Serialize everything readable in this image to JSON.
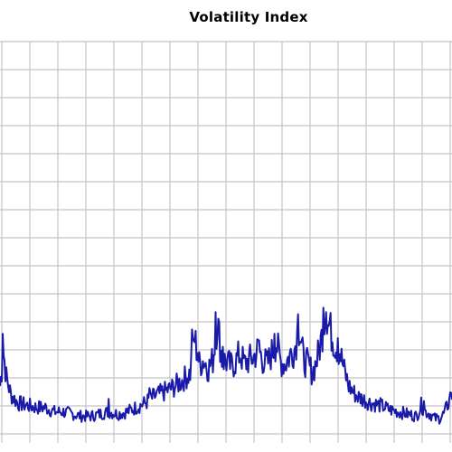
{
  "chart_data": {
    "type": "line",
    "title": "Volatility Index",
    "xlabel": "",
    "ylabel": "",
    "grid": true,
    "legend": "none",
    "line_color": "#1a1aa8",
    "grid_color": "#c4c4c4",
    "background": "#ffffff",
    "n_points": 500,
    "series": [
      {
        "name": "",
        "points": [
          [
            0,
            0.18
          ],
          [
            2,
            0.25
          ],
          [
            4,
            0.33
          ],
          [
            7,
            0.22
          ],
          [
            12,
            0.14
          ],
          [
            20,
            0.1
          ],
          [
            30,
            0.09
          ],
          [
            40,
            0.08
          ],
          [
            50,
            0.08
          ],
          [
            60,
            0.06
          ],
          [
            70,
            0.06
          ],
          [
            80,
            0.05
          ],
          [
            90,
            0.04
          ],
          [
            100,
            0.04
          ],
          [
            110,
            0.05
          ],
          [
            120,
            0.06
          ],
          [
            130,
            0.05
          ],
          [
            140,
            0.06
          ],
          [
            150,
            0.08
          ],
          [
            160,
            0.1
          ],
          [
            170,
            0.13
          ],
          [
            180,
            0.15
          ],
          [
            190,
            0.17
          ],
          [
            200,
            0.2
          ],
          [
            210,
            0.24
          ],
          [
            215,
            0.4
          ],
          [
            220,
            0.28
          ],
          [
            225,
            0.3
          ],
          [
            230,
            0.26
          ],
          [
            235,
            0.3
          ],
          [
            240,
            0.48
          ],
          [
            245,
            0.3
          ],
          [
            250,
            0.29
          ],
          [
            255,
            0.27
          ],
          [
            260,
            0.29
          ],
          [
            265,
            0.33
          ],
          [
            270,
            0.28
          ],
          [
            275,
            0.3
          ],
          [
            280,
            0.31
          ],
          [
            285,
            0.35
          ],
          [
            290,
            0.3
          ],
          [
            295,
            0.28
          ],
          [
            300,
            0.33
          ],
          [
            305,
            0.38
          ],
          [
            310,
            0.29
          ],
          [
            315,
            0.28
          ],
          [
            320,
            0.32
          ],
          [
            325,
            0.35
          ],
          [
            330,
            0.45
          ],
          [
            335,
            0.3
          ],
          [
            340,
            0.28
          ],
          [
            345,
            0.24
          ],
          [
            350,
            0.3
          ],
          [
            355,
            0.4
          ],
          [
            358,
            0.5
          ],
          [
            362,
            0.46
          ],
          [
            366,
            0.42
          ],
          [
            370,
            0.37
          ],
          [
            375,
            0.34
          ],
          [
            380,
            0.25
          ],
          [
            385,
            0.18
          ],
          [
            390,
            0.15
          ],
          [
            395,
            0.13
          ],
          [
            400,
            0.12
          ],
          [
            410,
            0.1
          ],
          [
            420,
            0.09
          ],
          [
            430,
            0.07
          ],
          [
            440,
            0.06
          ],
          [
            450,
            0.05
          ],
          [
            460,
            0.04
          ],
          [
            465,
            0.09
          ],
          [
            470,
            0.06
          ],
          [
            475,
            0.05
          ],
          [
            480,
            0.03
          ],
          [
            485,
            0.03
          ],
          [
            490,
            0.05
          ],
          [
            495,
            0.1
          ],
          [
            499,
            0.13
          ]
        ],
        "spikes": [
          [
            3,
            0.42
          ],
          [
            120,
            0.12
          ],
          [
            165,
            0.17
          ],
          [
            212,
            0.44
          ],
          [
            218,
            0.33
          ],
          [
            238,
            0.52
          ],
          [
            246,
            0.36
          ],
          [
            268,
            0.36
          ],
          [
            286,
            0.39
          ],
          [
            303,
            0.42
          ],
          [
            329,
            0.51
          ],
          [
            357,
            0.54
          ],
          [
            360,
            0.52
          ],
          [
            364,
            0.48
          ],
          [
            373,
            0.4
          ],
          [
            468,
            0.11
          ],
          [
            497,
            0.15
          ]
        ]
      }
    ],
    "ylim": [
      0,
      1
    ],
    "xlim": [
      0,
      499
    ]
  }
}
